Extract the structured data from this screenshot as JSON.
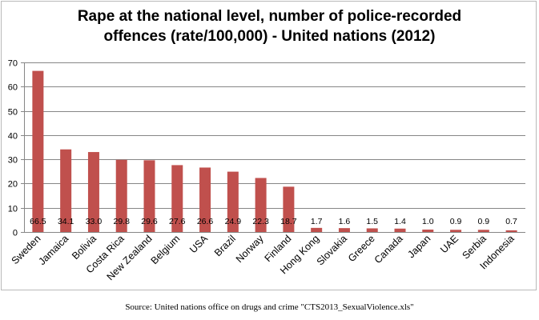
{
  "chart_data": {
    "type": "bar",
    "title": "Rape at the national level, number of police-recorded offences (rate/100,000) - United nations (2012)",
    "title_lines": [
      "Rape at the national level, number of police-recorded",
      "offences (rate/100,000) - United nations (2012)"
    ],
    "categories": [
      "Sweden",
      "Jamaica",
      "Bolivia",
      "Costa Rica",
      "New Zealand",
      "Belgium",
      "USA",
      "Brazil",
      "Norway",
      "Finland",
      "Hong Kong",
      "Slovakia",
      "Greece",
      "Canada",
      "Japan",
      "UAE",
      "Serbia",
      "Indonesia"
    ],
    "values": [
      66.5,
      34.1,
      33.0,
      29.8,
      29.6,
      27.6,
      26.6,
      24.9,
      22.3,
      18.7,
      1.7,
      1.6,
      1.5,
      1.4,
      1.0,
      0.9,
      0.9,
      0.7
    ],
    "data_labels": [
      "66.5",
      "34.1",
      "33.0",
      "29.8",
      "29.6",
      "27.6",
      "26.6",
      "24.9",
      "22.3",
      "18.7",
      "1.7",
      "1.6",
      "1.5",
      "1.4",
      "1.0",
      "0.9",
      "0.9",
      "0.7"
    ],
    "yticks": [
      "0",
      "10",
      "20",
      "30",
      "40",
      "50",
      "60",
      "70"
    ],
    "ylim": [
      0,
      70
    ],
    "xlabel": "",
    "ylabel": "",
    "grid": true,
    "legend": "none",
    "bar_color": "#c0504d",
    "grid_color": "#868686"
  },
  "source": "Source: United nations office on drugs and crime \"CTS2013_SexualViolence.xls\""
}
